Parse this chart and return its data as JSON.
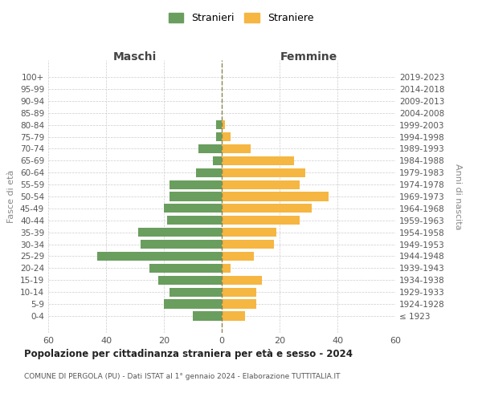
{
  "age_groups": [
    "100+",
    "95-99",
    "90-94",
    "85-89",
    "80-84",
    "75-79",
    "70-74",
    "65-69",
    "60-64",
    "55-59",
    "50-54",
    "45-49",
    "40-44",
    "35-39",
    "30-34",
    "25-29",
    "20-24",
    "15-19",
    "10-14",
    "5-9",
    "0-4"
  ],
  "birth_years": [
    "≤ 1923",
    "1924-1928",
    "1929-1933",
    "1934-1938",
    "1939-1943",
    "1944-1948",
    "1949-1953",
    "1954-1958",
    "1959-1963",
    "1964-1968",
    "1969-1973",
    "1974-1978",
    "1979-1983",
    "1984-1988",
    "1989-1993",
    "1994-1998",
    "1999-2003",
    "2004-2008",
    "2009-2013",
    "2014-2018",
    "2019-2023"
  ],
  "maschi": [
    0,
    0,
    0,
    0,
    2,
    2,
    8,
    3,
    9,
    18,
    18,
    20,
    19,
    29,
    28,
    43,
    25,
    22,
    18,
    20,
    10
  ],
  "femmine": [
    0,
    0,
    0,
    0,
    1,
    3,
    10,
    25,
    29,
    27,
    37,
    31,
    27,
    19,
    18,
    11,
    3,
    14,
    12,
    12,
    8
  ],
  "color_maschi": "#6a9e5e",
  "color_femmine": "#f5b642",
  "title": "Popolazione per cittadinanza straniera per età e sesso - 2024",
  "subtitle": "COMUNE DI PERGOLA (PU) - Dati ISTAT al 1° gennaio 2024 - Elaborazione TUTTITALIA.IT",
  "xlabel_left": "Maschi",
  "xlabel_right": "Femmine",
  "ylabel_left": "Fasce di età",
  "ylabel_right": "Anni di nascita",
  "legend_maschi": "Stranieri",
  "legend_femmine": "Straniere",
  "xlim": 60,
  "background_color": "#ffffff",
  "grid_color": "#cccccc"
}
